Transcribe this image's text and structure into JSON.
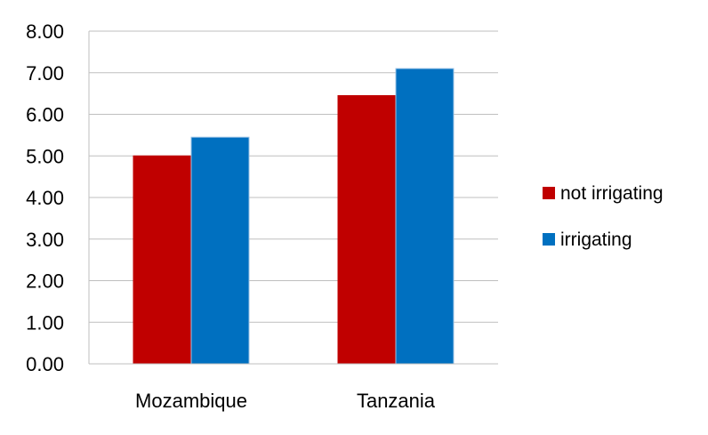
{
  "chart_data": {
    "type": "bar",
    "title": "",
    "xlabel": "",
    "ylabel": "",
    "categories": [
      "Mozambique",
      "Tanzania"
    ],
    "series": [
      {
        "name": "not irrigating",
        "values": [
          5.0,
          6.45
        ],
        "color": "#C00000"
      },
      {
        "name": "irrigating",
        "values": [
          5.45,
          7.1
        ],
        "color": "#0070C0"
      }
    ],
    "ylim": [
      0,
      8
    ],
    "yticks": [
      "0.00",
      "1.00",
      "2.00",
      "3.00",
      "4.00",
      "5.00",
      "6.00",
      "7.00",
      "8.00"
    ],
    "grid": true,
    "legend_position": "right"
  }
}
